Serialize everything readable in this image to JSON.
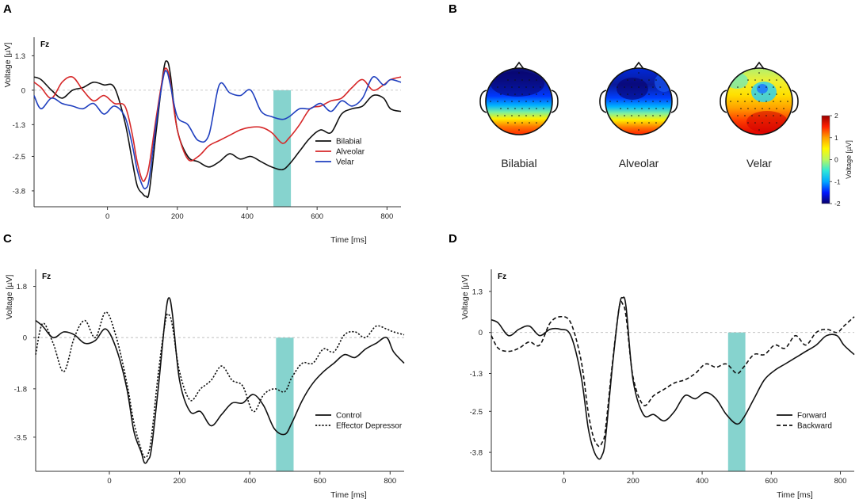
{
  "figure": {
    "panel_letters": [
      "A",
      "B",
      "C",
      "D"
    ]
  },
  "chart_data": [
    {
      "panel": "A",
      "type": "line",
      "title": "Fz",
      "xlabel": "Time [ms]",
      "ylabel": "Voltage [µV]",
      "xlim": [
        -210,
        840
      ],
      "ylim": [
        -4.4,
        2.0
      ],
      "xticks": [
        0,
        200,
        400,
        600,
        800
      ],
      "yticks": [
        1.3,
        0,
        -1.3,
        -2.5,
        -3.8
      ],
      "ytick_labels": [
        "1.3",
        "0",
        "-1.3",
        "-2.5",
        "-3.8"
      ],
      "baseline": 0,
      "highlight_window": [
        475,
        525
      ],
      "highlight_color": "#7fd1cb",
      "legend": [
        {
          "label": "Bilabial",
          "color": "#111111",
          "dash": "solid"
        },
        {
          "label": "Alveolar",
          "color": "#d62728",
          "dash": "solid"
        },
        {
          "label": "Velar",
          "color": "#1f3fbf",
          "dash": "solid"
        }
      ],
      "series": [
        {
          "name": "Bilabial",
          "color": "#111111",
          "dash": "solid",
          "x": [
            -210,
            -190,
            -160,
            -130,
            -100,
            -70,
            -40,
            -10,
            20,
            50,
            70,
            85,
            100,
            110,
            120,
            140,
            160,
            170,
            180,
            200,
            230,
            260,
            290,
            320,
            350,
            380,
            410,
            440,
            470,
            500,
            520,
            550,
            580,
            610,
            640,
            670,
            700,
            730,
            760,
            790,
            810,
            840
          ],
          "y": [
            0.5,
            0.4,
            0.0,
            -0.3,
            0.0,
            0.1,
            0.3,
            0.2,
            0.1,
            -1.2,
            -2.6,
            -3.6,
            -3.9,
            -4.0,
            -3.8,
            -1.5,
            0.7,
            1.1,
            0.6,
            -1.5,
            -2.5,
            -2.7,
            -2.9,
            -2.7,
            -2.4,
            -2.6,
            -2.5,
            -2.7,
            -2.9,
            -3.0,
            -2.8,
            -2.3,
            -1.8,
            -1.5,
            -1.6,
            -0.9,
            -0.7,
            -0.6,
            -0.2,
            -0.3,
            -0.7,
            -0.8
          ]
        },
        {
          "name": "Alveolar",
          "color": "#d62728",
          "dash": "solid",
          "x": [
            -210,
            -190,
            -160,
            -130,
            -100,
            -70,
            -40,
            -10,
            20,
            50,
            70,
            85,
            100,
            110,
            120,
            140,
            160,
            170,
            180,
            200,
            230,
            260,
            290,
            320,
            350,
            380,
            410,
            440,
            470,
            500,
            520,
            550,
            580,
            610,
            640,
            670,
            700,
            730,
            760,
            790,
            810,
            840
          ],
          "y": [
            0.3,
            0.1,
            -0.3,
            0.3,
            0.5,
            0.0,
            -0.4,
            -0.2,
            -0.5,
            -0.6,
            -1.6,
            -2.7,
            -3.4,
            -3.3,
            -2.8,
            -1.0,
            0.6,
            0.8,
            0.3,
            -1.5,
            -2.6,
            -2.5,
            -2.1,
            -1.9,
            -1.7,
            -1.5,
            -1.4,
            -1.4,
            -1.6,
            -2.0,
            -1.8,
            -1.3,
            -0.7,
            -0.6,
            -0.4,
            -0.3,
            0.1,
            0.4,
            0.0,
            0.2,
            0.4,
            0.5
          ]
        },
        {
          "name": "Velar",
          "color": "#1f3fbf",
          "dash": "solid",
          "x": [
            -210,
            -190,
            -160,
            -130,
            -100,
            -70,
            -40,
            -10,
            20,
            50,
            70,
            85,
            100,
            110,
            120,
            140,
            160,
            170,
            180,
            200,
            230,
            260,
            290,
            320,
            350,
            380,
            410,
            440,
            470,
            500,
            520,
            550,
            580,
            610,
            640,
            670,
            700,
            730,
            760,
            790,
            810,
            840
          ],
          "y": [
            -0.2,
            -0.7,
            -0.3,
            -0.5,
            -0.6,
            -0.7,
            -0.5,
            -0.9,
            -0.6,
            -1.0,
            -2.0,
            -3.0,
            -3.6,
            -3.7,
            -3.3,
            -1.2,
            0.5,
            0.7,
            0.2,
            -1.0,
            -1.3,
            -1.9,
            -1.7,
            0.2,
            -0.1,
            -0.2,
            0.0,
            -0.8,
            -1.0,
            -1.1,
            -1.0,
            -0.7,
            -0.7,
            -0.5,
            -0.8,
            -0.4,
            -0.6,
            -0.3,
            0.5,
            0.2,
            0.4,
            0.3
          ]
        }
      ]
    },
    {
      "panel": "B",
      "type": "heatmap",
      "title": "",
      "maps": [
        "Bilabial",
        "Alveolar",
        "Velar"
      ],
      "colorbar_label": "Voltage [µV]",
      "colorbar_ticks": [
        2,
        1,
        0,
        -1,
        -2
      ],
      "colorbar_tick_labels": [
        "2",
        "1",
        "0",
        "-1",
        "-2"
      ],
      "colorbar_range": [
        -2,
        2
      ],
      "colormap": [
        "#08006a",
        "#0018ff",
        "#00a8ff",
        "#30e8d8",
        "#b8f860",
        "#fff800",
        "#ffa000",
        "#ff2000",
        "#9a0000"
      ]
    },
    {
      "panel": "C",
      "type": "line",
      "title": "Fz",
      "xlabel": "Time [ms]",
      "ylabel": "Voltage [µV]",
      "xlim": [
        -210,
        840
      ],
      "ylim": [
        -4.7,
        2.4
      ],
      "xticks": [
        0,
        200,
        400,
        600,
        800
      ],
      "yticks": [
        1.8,
        0,
        -1.8,
        -3.5
      ],
      "ytick_labels": [
        "1.8",
        "0",
        "-1.8",
        "-3.5"
      ],
      "baseline": 0,
      "highlight_window": [
        475,
        525
      ],
      "highlight_color": "#7fd1cb",
      "legend": [
        {
          "label": "Control",
          "color": "#111111",
          "dash": "solid"
        },
        {
          "label": "Effector Depressor",
          "color": "#111111",
          "dash": "dotted"
        }
      ],
      "series": [
        {
          "name": "Control",
          "color": "#111111",
          "dash": "solid",
          "x": [
            -210,
            -190,
            -160,
            -130,
            -100,
            -70,
            -40,
            -10,
            20,
            50,
            70,
            90,
            100,
            110,
            120,
            140,
            160,
            170,
            180,
            200,
            230,
            260,
            290,
            320,
            350,
            380,
            410,
            440,
            470,
            500,
            520,
            550,
            580,
            610,
            640,
            670,
            700,
            730,
            760,
            790,
            810,
            840
          ],
          "y": [
            0.6,
            0.4,
            0.0,
            0.2,
            0.1,
            -0.2,
            -0.1,
            0.3,
            -0.4,
            -1.8,
            -3.3,
            -4.0,
            -4.4,
            -4.3,
            -3.9,
            -1.7,
            0.8,
            1.4,
            0.8,
            -1.5,
            -2.6,
            -2.6,
            -3.1,
            -2.7,
            -2.3,
            -2.3,
            -2.0,
            -2.4,
            -3.2,
            -3.4,
            -3.0,
            -2.2,
            -1.6,
            -1.2,
            -0.9,
            -0.6,
            -0.7,
            -0.4,
            -0.2,
            0.0,
            -0.5,
            -0.9
          ]
        },
        {
          "name": "Effector Depressor",
          "color": "#111111",
          "dash": "dotted",
          "x": [
            -210,
            -190,
            -160,
            -130,
            -100,
            -70,
            -40,
            -10,
            20,
            50,
            70,
            90,
            100,
            110,
            120,
            140,
            160,
            170,
            180,
            200,
            230,
            260,
            290,
            320,
            350,
            380,
            410,
            440,
            470,
            500,
            520,
            550,
            580,
            610,
            640,
            670,
            700,
            730,
            760,
            790,
            810,
            840
          ],
          "y": [
            -0.6,
            0.5,
            -0.2,
            -1.2,
            0.0,
            0.6,
            0.0,
            0.9,
            0.0,
            -1.6,
            -3.0,
            -3.9,
            -4.2,
            -4.1,
            -3.5,
            -1.2,
            0.6,
            0.8,
            0.4,
            -1.2,
            -2.2,
            -1.8,
            -1.5,
            -1.0,
            -1.5,
            -1.7,
            -2.6,
            -2.0,
            -1.8,
            -1.9,
            -1.4,
            -0.9,
            -0.9,
            -0.4,
            -0.5,
            0.1,
            0.2,
            0.0,
            0.4,
            0.3,
            0.2,
            0.1
          ]
        }
      ]
    },
    {
      "panel": "D",
      "type": "line",
      "title": "Fz",
      "xlabel": "Time [ms]",
      "ylabel": "Voltage [µV]",
      "xlim": [
        -210,
        840
      ],
      "ylim": [
        -4.4,
        2.0
      ],
      "xticks": [
        0,
        200,
        400,
        600,
        800
      ],
      "yticks": [
        1.3,
        0,
        -1.3,
        -2.5,
        -3.8
      ],
      "ytick_labels": [
        "1.3",
        "0",
        "-1.3",
        "-2.5",
        "-3.8"
      ],
      "baseline": 0,
      "highlight_window": [
        475,
        525
      ],
      "highlight_color": "#7fd1cb",
      "legend": [
        {
          "label": "Forward",
          "color": "#111111",
          "dash": "solid"
        },
        {
          "label": "Backward",
          "color": "#111111",
          "dash": "dashed"
        }
      ],
      "series": [
        {
          "name": "Forward",
          "color": "#111111",
          "dash": "solid",
          "x": [
            -210,
            -190,
            -160,
            -130,
            -100,
            -70,
            -40,
            -10,
            20,
            50,
            70,
            85,
            100,
            110,
            120,
            140,
            160,
            170,
            180,
            200,
            230,
            260,
            290,
            320,
            350,
            380,
            410,
            440,
            470,
            500,
            520,
            550,
            580,
            610,
            640,
            670,
            700,
            730,
            760,
            790,
            810,
            840
          ],
          "y": [
            0.4,
            0.3,
            -0.1,
            0.1,
            0.2,
            -0.1,
            0.1,
            0.1,
            -0.1,
            -1.4,
            -3.0,
            -3.7,
            -4.0,
            -3.9,
            -3.4,
            -1.1,
            0.8,
            1.1,
            0.8,
            -1.5,
            -2.6,
            -2.6,
            -2.8,
            -2.5,
            -2.0,
            -2.1,
            -1.9,
            -2.1,
            -2.6,
            -2.9,
            -2.7,
            -2.1,
            -1.5,
            -1.2,
            -1.0,
            -0.8,
            -0.6,
            -0.4,
            -0.1,
            -0.1,
            -0.4,
            -0.7
          ]
        },
        {
          "name": "Backward",
          "color": "#111111",
          "dash": "dashed",
          "x": [
            -210,
            -190,
            -160,
            -130,
            -100,
            -70,
            -40,
            -10,
            20,
            50,
            70,
            85,
            100,
            110,
            120,
            140,
            160,
            170,
            180,
            200,
            230,
            260,
            290,
            320,
            350,
            380,
            410,
            440,
            470,
            500,
            520,
            550,
            580,
            610,
            640,
            670,
            700,
            730,
            760,
            790,
            810,
            840
          ],
          "y": [
            -0.1,
            -0.5,
            -0.6,
            -0.5,
            -0.3,
            -0.4,
            0.3,
            0.5,
            0.3,
            -0.9,
            -2.5,
            -3.3,
            -3.6,
            -3.5,
            -3.1,
            -1.0,
            0.8,
            0.9,
            0.5,
            -1.4,
            -2.3,
            -2.0,
            -1.8,
            -1.6,
            -1.5,
            -1.3,
            -1.0,
            -1.1,
            -1.0,
            -1.3,
            -1.1,
            -0.7,
            -0.7,
            -0.4,
            -0.5,
            -0.1,
            -0.4,
            0.0,
            0.1,
            0.0,
            0.2,
            0.5
          ]
        }
      ]
    }
  ]
}
